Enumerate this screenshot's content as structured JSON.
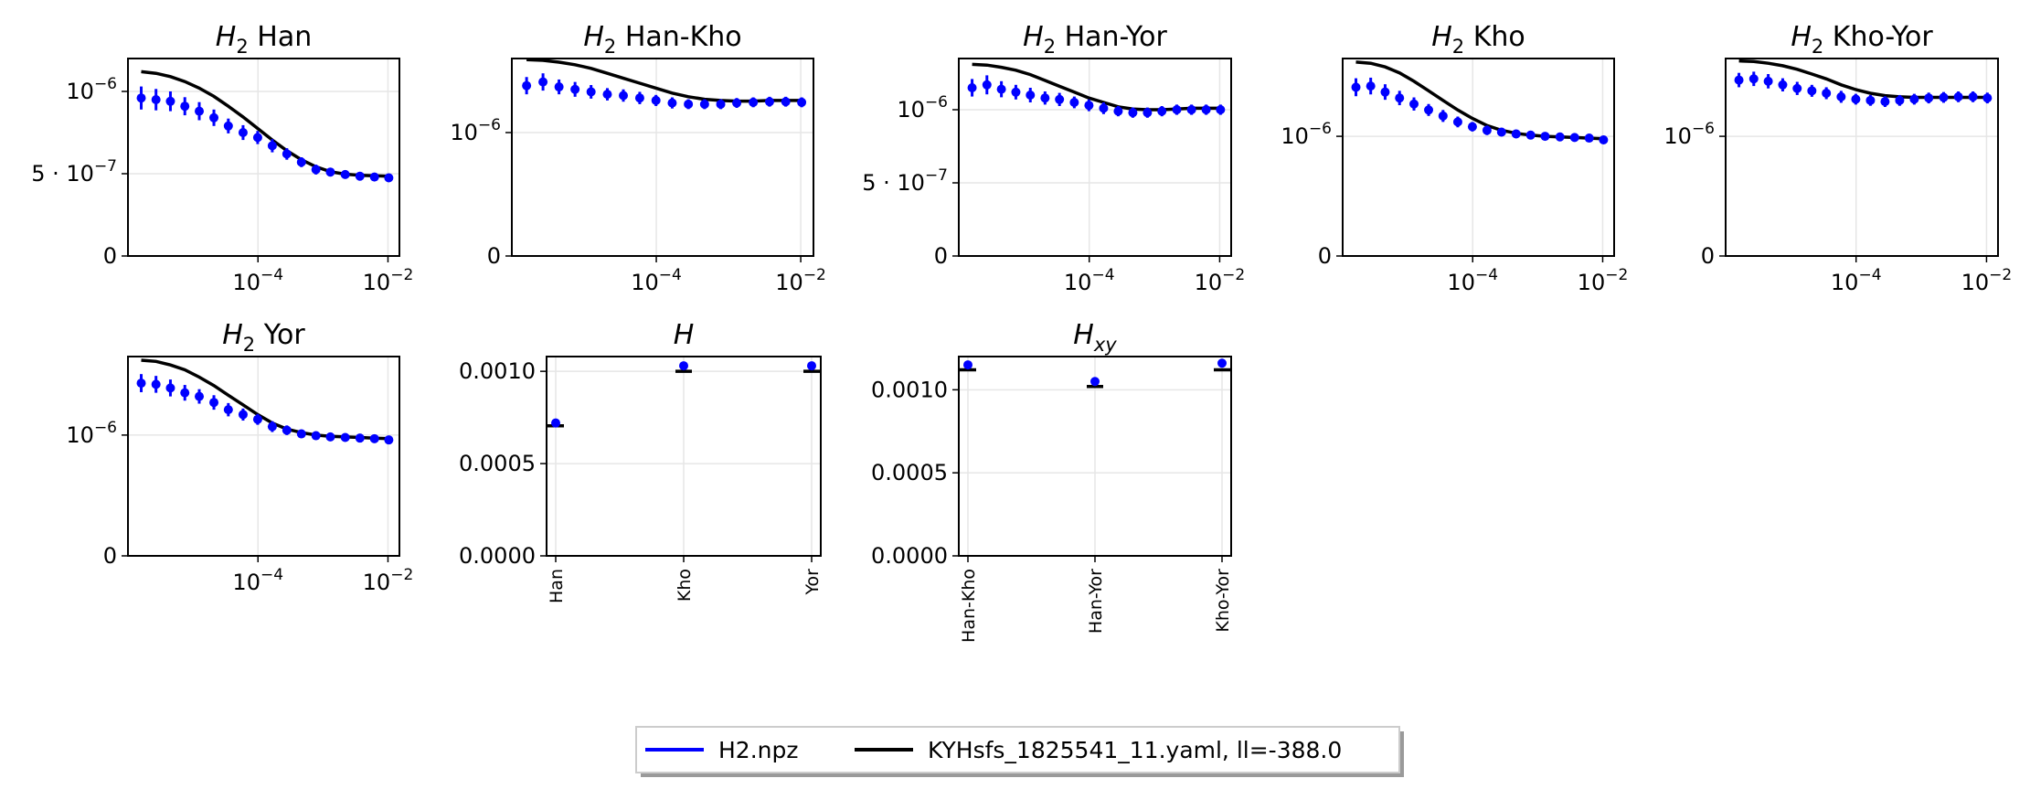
{
  "chart_data": [
    {
      "type": "scatter",
      "title": "H_2 Han",
      "title_base": "H",
      "title_sub": "2",
      "title_rest": " Han",
      "xscale": "log",
      "xlim": [
        1e-06,
        0.015
      ],
      "xticks": [
        {
          "v": 0.0001,
          "label": "10",
          "sup": "−4"
        },
        {
          "v": 0.01,
          "label": "10",
          "sup": "−2"
        }
      ],
      "ylim": [
        0,
        1.2e-06
      ],
      "yticks": [
        {
          "v": 0,
          "label": "0",
          "sup": ""
        },
        {
          "v": 5e-07,
          "label": "5 · 10",
          "sup": "−7"
        },
        {
          "v": 1e-06,
          "label": "10",
          "sup": "−6"
        }
      ],
      "data_x": [
        1.6e-06,
        2.7e-06,
        4.5e-06,
        7.5e-06,
        1.25e-05,
        2.1e-05,
        3.5e-05,
        5.9e-05,
        9.9e-05,
        0.000166,
        0.000278,
        0.000466,
        0.00078,
        0.0013,
        0.0022,
        0.0037,
        0.0062,
        0.0103
      ],
      "data_y": [
        9.6e-07,
        9.5e-07,
        9.4e-07,
        9.1e-07,
        8.8e-07,
        8.4e-07,
        7.9e-07,
        7.5e-07,
        7.2e-07,
        6.7e-07,
        6.2e-07,
        5.7e-07,
        5.25e-07,
        5.1e-07,
        4.95e-07,
        4.85e-07,
        4.8e-07,
        4.75e-07
      ],
      "data_err": [
        7e-08,
        6.5e-08,
        6e-08,
        5.5e-08,
        5.5e-08,
        5e-08,
        4.5e-08,
        4.5e-08,
        4e-08,
        4e-08,
        3.5e-08,
        3e-08,
        3e-08,
        2.5e-08,
        2e-08,
        2e-08,
        1.5e-08,
        1.5e-08
      ],
      "model_x": [
        1.6e-06,
        2.7e-06,
        4.5e-06,
        7.5e-06,
        1.25e-05,
        2.1e-05,
        3.5e-05,
        5.9e-05,
        9.9e-05,
        0.000166,
        0.000278,
        0.000466,
        0.00078,
        0.0013,
        0.0022,
        0.0037,
        0.0062,
        0.0103
      ],
      "model_y": [
        1.12e-06,
        1.11e-06,
        1.09e-06,
        1.06e-06,
        1.02e-06,
        9.7e-07,
        9.1e-07,
        8.45e-07,
        7.75e-07,
        7.05e-07,
        6.4e-07,
        5.85e-07,
        5.42e-07,
        5.12e-07,
        4.97e-07,
        4.9e-07,
        4.87e-07,
        4.85e-07
      ]
    },
    {
      "type": "scatter",
      "title": "H_2 Han-Kho",
      "title_base": "H",
      "title_sub": "2",
      "title_rest": " Han-Kho",
      "xscale": "log",
      "xlim": [
        1e-06,
        0.015
      ],
      "xticks": [
        {
          "v": 0.0001,
          "label": "10",
          "sup": "−4"
        },
        {
          "v": 0.01,
          "label": "10",
          "sup": "−2"
        }
      ],
      "ylim": [
        0,
        1.6e-06
      ],
      "yticks": [
        {
          "v": 0,
          "label": "0",
          "sup": ""
        },
        {
          "v": 1e-06,
          "label": "10",
          "sup": "−6"
        }
      ],
      "data_x": [
        1.6e-06,
        2.7e-06,
        4.5e-06,
        7.5e-06,
        1.25e-05,
        2.1e-05,
        3.5e-05,
        5.9e-05,
        9.9e-05,
        0.000166,
        0.000278,
        0.000466,
        0.00078,
        0.0013,
        0.0022,
        0.0037,
        0.0062,
        0.0103
      ],
      "data_y": [
        1.38e-06,
        1.41e-06,
        1.37e-06,
        1.35e-06,
        1.33e-06,
        1.31e-06,
        1.3e-06,
        1.28e-06,
        1.26e-06,
        1.24e-06,
        1.23e-06,
        1.23e-06,
        1.23e-06,
        1.24e-06,
        1.245e-06,
        1.25e-06,
        1.25e-06,
        1.245e-06
      ],
      "data_err": [
        7e-08,
        7e-08,
        6e-08,
        6e-08,
        5.5e-08,
        5e-08,
        5e-08,
        5e-08,
        4.5e-08,
        4.5e-08,
        4e-08,
        4e-08,
        4e-08,
        4e-08,
        4e-08,
        4e-08,
        4e-08,
        4e-08
      ],
      "model_x": [
        1.6e-06,
        2.7e-06,
        4.5e-06,
        7.5e-06,
        1.25e-05,
        2.1e-05,
        3.5e-05,
        5.9e-05,
        9.9e-05,
        0.000166,
        0.000278,
        0.000466,
        0.00078,
        0.0013,
        0.0022,
        0.0037,
        0.0062,
        0.0103
      ],
      "model_y": [
        1.59e-06,
        1.585e-06,
        1.57e-06,
        1.55e-06,
        1.52e-06,
        1.48e-06,
        1.44e-06,
        1.4e-06,
        1.36e-06,
        1.32e-06,
        1.29e-06,
        1.27e-06,
        1.26e-06,
        1.255e-06,
        1.255e-06,
        1.26e-06,
        1.26e-06,
        1.26e-06
      ]
    },
    {
      "type": "scatter",
      "title": "H_2 Han-Yor",
      "title_base": "H",
      "title_sub": "2",
      "title_rest": " Han-Yor",
      "xscale": "log",
      "xlim": [
        1e-06,
        0.015
      ],
      "xticks": [
        {
          "v": 0.0001,
          "label": "10",
          "sup": "−4"
        },
        {
          "v": 0.01,
          "label": "10",
          "sup": "−2"
        }
      ],
      "ylim": [
        0,
        1.35e-06
      ],
      "yticks": [
        {
          "v": 0,
          "label": "0",
          "sup": ""
        },
        {
          "v": 5e-07,
          "label": "5 · 10",
          "sup": "−7"
        },
        {
          "v": 1e-06,
          "label": "10",
          "sup": "−6"
        }
      ],
      "data_x": [
        1.6e-06,
        2.7e-06,
        4.5e-06,
        7.5e-06,
        1.25e-05,
        2.1e-05,
        3.5e-05,
        5.9e-05,
        9.9e-05,
        0.000166,
        0.000278,
        0.000466,
        0.00078,
        0.0013,
        0.0022,
        0.0037,
        0.0062,
        0.0103
      ],
      "data_y": [
        1.15e-06,
        1.17e-06,
        1.14e-06,
        1.12e-06,
        1.1e-06,
        1.08e-06,
        1.07e-06,
        1.05e-06,
        1.03e-06,
        1.01e-06,
        9.9e-07,
        9.8e-07,
        9.8e-07,
        9.9e-07,
        1e-06,
        1e-06,
        1e-06,
        1e-06
      ],
      "data_err": [
        6e-08,
        6.5e-08,
        5.5e-08,
        5e-08,
        5e-08,
        4.5e-08,
        4.5e-08,
        4e-08,
        4e-08,
        4e-08,
        3.5e-08,
        3.5e-08,
        3.5e-08,
        3.5e-08,
        3.5e-08,
        3.5e-08,
        3.5e-08,
        3.5e-08
      ],
      "model_x": [
        1.6e-06,
        2.7e-06,
        4.5e-06,
        7.5e-06,
        1.25e-05,
        2.1e-05,
        3.5e-05,
        5.9e-05,
        9.9e-05,
        0.000166,
        0.000278,
        0.000466,
        0.00078,
        0.0013,
        0.0022,
        0.0037,
        0.0062,
        0.0103
      ],
      "model_y": [
        1.31e-06,
        1.305e-06,
        1.29e-06,
        1.27e-06,
        1.24e-06,
        1.2e-06,
        1.16e-06,
        1.12e-06,
        1.08e-06,
        1.05e-06,
        1.02e-06,
        1.005e-06,
        1e-06,
        1e-06,
        1.005e-06,
        1.01e-06,
        1.01e-06,
        1.01e-06
      ]
    },
    {
      "type": "scatter",
      "title": "H_2 Kho",
      "title_base": "H",
      "title_sub": "2",
      "title_rest": " Kho",
      "xscale": "log",
      "xlim": [
        1e-06,
        0.015
      ],
      "xticks": [
        {
          "v": 0.0001,
          "label": "10",
          "sup": "−4"
        },
        {
          "v": 0.01,
          "label": "10",
          "sup": "−2"
        }
      ],
      "ylim": [
        0,
        1.65e-06
      ],
      "yticks": [
        {
          "v": 0,
          "label": "0",
          "sup": ""
        },
        {
          "v": 1e-06,
          "label": "10",
          "sup": "−6"
        }
      ],
      "data_x": [
        1.6e-06,
        2.7e-06,
        4.5e-06,
        7.5e-06,
        1.25e-05,
        2.1e-05,
        3.5e-05,
        5.9e-05,
        9.9e-05,
        0.000166,
        0.000278,
        0.000466,
        0.00078,
        0.0013,
        0.0022,
        0.0037,
        0.0062,
        0.0103
      ],
      "data_y": [
        1.41e-06,
        1.42e-06,
        1.37e-06,
        1.32e-06,
        1.27e-06,
        1.22e-06,
        1.17e-06,
        1.12e-06,
        1.08e-06,
        1.05e-06,
        1.035e-06,
        1.02e-06,
        1.01e-06,
        1e-06,
        9.95e-07,
        9.9e-07,
        9.85e-07,
        9.7e-07
      ],
      "data_err": [
        7.5e-08,
        7e-08,
        6.5e-08,
        6e-08,
        5.5e-08,
        5e-08,
        5e-08,
        4.5e-08,
        4e-08,
        4e-08,
        3.5e-08,
        3.5e-08,
        3e-08,
        3e-08,
        3e-08,
        3e-08,
        3e-08,
        3e-08
      ],
      "model_x": [
        1.6e-06,
        2.7e-06,
        4.5e-06,
        7.5e-06,
        1.25e-05,
        2.1e-05,
        3.5e-05,
        5.9e-05,
        9.9e-05,
        0.000166,
        0.000278,
        0.000466,
        0.00078,
        0.0013,
        0.0022,
        0.0037,
        0.0062,
        0.0103
      ],
      "model_y": [
        1.62e-06,
        1.61e-06,
        1.58e-06,
        1.53e-06,
        1.46e-06,
        1.38e-06,
        1.3e-06,
        1.22e-06,
        1.15e-06,
        1.09e-06,
        1.05e-06,
        1.025e-06,
        1.01e-06,
        1e-06,
        9.95e-07,
        9.9e-07,
        9.85e-07,
        9.8e-07
      ]
    },
    {
      "type": "scatter",
      "title": "H_2 Kho-Yor",
      "title_base": "H",
      "title_sub": "2",
      "title_rest": " Kho-Yor",
      "xscale": "log",
      "xlim": [
        1e-06,
        0.015
      ],
      "xticks": [
        {
          "v": 0.0001,
          "label": "10",
          "sup": "−4"
        },
        {
          "v": 0.01,
          "label": "10",
          "sup": "−2"
        }
      ],
      "ylim": [
        0,
        1.65e-06
      ],
      "yticks": [
        {
          "v": 0,
          "label": "0",
          "sup": ""
        },
        {
          "v": 1e-06,
          "label": "10",
          "sup": "−6"
        }
      ],
      "data_x": [
        1.6e-06,
        2.7e-06,
        4.5e-06,
        7.5e-06,
        1.25e-05,
        2.1e-05,
        3.5e-05,
        5.9e-05,
        9.9e-05,
        0.000166,
        0.000278,
        0.000466,
        0.00078,
        0.0013,
        0.0022,
        0.0037,
        0.0062,
        0.0103
      ],
      "data_y": [
        1.47e-06,
        1.48e-06,
        1.46e-06,
        1.43e-06,
        1.4e-06,
        1.38e-06,
        1.36e-06,
        1.33e-06,
        1.31e-06,
        1.3e-06,
        1.29e-06,
        1.3e-06,
        1.31e-06,
        1.32e-06,
        1.325e-06,
        1.33e-06,
        1.33e-06,
        1.32e-06
      ],
      "data_err": [
        6e-08,
        6e-08,
        6e-08,
        5.5e-08,
        5.5e-08,
        5e-08,
        5e-08,
        5e-08,
        4.5e-08,
        4.5e-08,
        4.5e-08,
        4.5e-08,
        4.5e-08,
        4.5e-08,
        4.5e-08,
        4.5e-08,
        4.5e-08,
        4.5e-08
      ],
      "model_x": [
        1.6e-06,
        2.7e-06,
        4.5e-06,
        7.5e-06,
        1.25e-05,
        2.1e-05,
        3.5e-05,
        5.9e-05,
        9.9e-05,
        0.000166,
        0.000278,
        0.000466,
        0.00078,
        0.0013,
        0.0022,
        0.0037,
        0.0062,
        0.0103
      ],
      "model_y": [
        1.63e-06,
        1.625e-06,
        1.61e-06,
        1.59e-06,
        1.56e-06,
        1.52e-06,
        1.48e-06,
        1.43e-06,
        1.39e-06,
        1.36e-06,
        1.34e-06,
        1.33e-06,
        1.325e-06,
        1.325e-06,
        1.325e-06,
        1.325e-06,
        1.325e-06,
        1.325e-06
      ]
    },
    {
      "type": "scatter",
      "title": "H_2 Yor",
      "title_base": "H",
      "title_sub": "2",
      "title_rest": " Yor",
      "xscale": "log",
      "xlim": [
        1e-06,
        0.015
      ],
      "xticks": [
        {
          "v": 0.0001,
          "label": "10",
          "sup": "−4"
        },
        {
          "v": 0.01,
          "label": "10",
          "sup": "−2"
        }
      ],
      "ylim": [
        0,
        1.65e-06
      ],
      "yticks": [
        {
          "v": 0,
          "label": "0",
          "sup": ""
        },
        {
          "v": 1e-06,
          "label": "10",
          "sup": "−6"
        }
      ],
      "data_x": [
        1.6e-06,
        2.7e-06,
        4.5e-06,
        7.5e-06,
        1.25e-05,
        2.1e-05,
        3.5e-05,
        5.9e-05,
        9.9e-05,
        0.000166,
        0.000278,
        0.000466,
        0.00078,
        0.0013,
        0.0022,
        0.0037,
        0.0062,
        0.0103
      ],
      "data_y": [
        1.43e-06,
        1.42e-06,
        1.39e-06,
        1.35e-06,
        1.32e-06,
        1.27e-06,
        1.21e-06,
        1.17e-06,
        1.13e-06,
        1.07e-06,
        1.04e-06,
        1.01e-06,
        9.95e-07,
        9.85e-07,
        9.8e-07,
        9.75e-07,
        9.7e-07,
        9.6e-07
      ],
      "data_err": [
        7.5e-08,
        7e-08,
        7e-08,
        6.5e-08,
        6e-08,
        6e-08,
        5.5e-08,
        5e-08,
        4.5e-08,
        4.5e-08,
        4e-08,
        3.5e-08,
        3.5e-08,
        3.5e-08,
        3e-08,
        3e-08,
        3e-08,
        3e-08
      ],
      "model_x": [
        1.6e-06,
        2.7e-06,
        4.5e-06,
        7.5e-06,
        1.25e-05,
        2.1e-05,
        3.5e-05,
        5.9e-05,
        9.9e-05,
        0.000166,
        0.000278,
        0.000466,
        0.00078,
        0.0013,
        0.0022,
        0.0037,
        0.0062,
        0.0103
      ],
      "model_y": [
        1.62e-06,
        1.61e-06,
        1.58e-06,
        1.54e-06,
        1.48e-06,
        1.41e-06,
        1.33e-06,
        1.25e-06,
        1.17e-06,
        1.1e-06,
        1.05e-06,
        1.02e-06,
        1e-06,
        9.9e-07,
        9.85e-07,
        9.8e-07,
        9.75e-07,
        9.7e-07
      ]
    },
    {
      "type": "scatter",
      "title": "H",
      "title_base": "H",
      "title_sub": "",
      "title_rest": "",
      "xscale": "category",
      "categories": [
        "Han",
        "Kho",
        "Yor"
      ],
      "ylim": [
        0,
        0.00108
      ],
      "yticks": [
        {
          "v": 0,
          "label": "0.0000",
          "sup": ""
        },
        {
          "v": 0.0005,
          "label": "0.0005",
          "sup": ""
        },
        {
          "v": 0.001,
          "label": "0.0010",
          "sup": ""
        }
      ],
      "data_y": [
        0.00072,
        0.00103,
        0.00103
      ],
      "data_err": [
        1e-05,
        1.2e-05,
        1.2e-05
      ],
      "model_y": [
        0.000705,
        0.001,
        0.001
      ]
    },
    {
      "type": "scatter",
      "title": "H_xy",
      "title_base": "H",
      "title_sub": "xy",
      "title_rest": "",
      "xscale": "category",
      "categories": [
        "Han-Kho",
        "Han-Yor",
        "Kho-Yor"
      ],
      "ylim": [
        0,
        0.0012
      ],
      "yticks": [
        {
          "v": 0,
          "label": "0.0000",
          "sup": ""
        },
        {
          "v": 0.0005,
          "label": "0.0005",
          "sup": ""
        },
        {
          "v": 0.001,
          "label": "0.0010",
          "sup": ""
        }
      ],
      "data_y": [
        0.00115,
        0.00105,
        0.00116
      ],
      "data_err": [
        1e-05,
        1e-05,
        1e-05
      ],
      "model_y": [
        0.00112,
        0.00102,
        0.00112
      ]
    }
  ],
  "legend": {
    "placement": "bottom-center",
    "entries": [
      {
        "label": "H2.npz",
        "color": "#0000ff"
      },
      {
        "label": "KYHsfs_1825541_11.yaml, ll=-388.0",
        "color": "#000000"
      }
    ]
  },
  "colors": {
    "data": "#0000ff",
    "model": "#000000",
    "grid": "#e6e6e6"
  }
}
